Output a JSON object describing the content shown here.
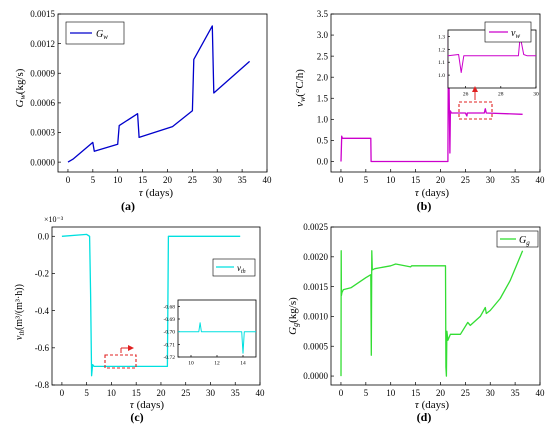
{
  "chart_data": [
    {
      "type": "line",
      "panel_label": "(a)",
      "xlabel": "τ (days)",
      "ylabel": "G_w (kg/s)",
      "ylabel_main": "G",
      "ylabel_sub": "w",
      "ylabel_unit": "(kg/s)",
      "xlim": [
        -2,
        40
      ],
      "ylim": [
        -0.0001,
        0.0015
      ],
      "xticks": [
        0,
        5,
        10,
        15,
        20,
        25,
        30,
        35,
        40
      ],
      "yticks": [
        0.0,
        0.0003,
        0.0006,
        0.0009,
        0.0012,
        0.0015
      ],
      "ytick_labels": [
        "0.0000",
        "0.0003",
        "0.0006",
        "0.0009",
        "0.0012",
        "0.0015"
      ],
      "color": "#0000cc",
      "legend": "G_w",
      "legend_main": "G",
      "legend_sub": "w",
      "legend_position": "top-left",
      "series": [
        {
          "x": [
            0,
            1,
            5,
            5.3,
            10,
            10.3,
            14,
            14.3,
            21,
            25,
            25.3,
            29,
            29.3,
            36.5
          ],
          "y": [
            0.0,
            3e-05,
            0.0002,
            0.00011,
            0.00018,
            0.00037,
            0.00049,
            0.00025,
            0.00036,
            0.00052,
            0.00104,
            0.00138,
            0.0007,
            0.00102
          ]
        }
      ]
    },
    {
      "type": "line",
      "panel_label": "(b)",
      "xlabel": "τ (days)",
      "ylabel": "v_w (°C/h)",
      "ylabel_main": "v",
      "ylabel_sub": "w",
      "ylabel_unit": "(°C/h)",
      "xlim": [
        -2,
        40
      ],
      "ylim": [
        -0.25,
        3.5
      ],
      "xticks": [
        0,
        5,
        10,
        15,
        20,
        25,
        30,
        35,
        40
      ],
      "yticks": [
        0.0,
        0.5,
        1.0,
        1.5,
        2.0,
        2.5,
        3.0,
        3.5
      ],
      "ytick_labels": [
        "0.0",
        "0.5",
        "1.0",
        "1.5",
        "2.0",
        "2.5",
        "3.0",
        "3.5"
      ],
      "color": "#cc00cc",
      "legend": "v_w",
      "legend_main": "v",
      "legend_sub": "w",
      "legend_position": "top-right",
      "series": [
        {
          "x": [
            0,
            0.15,
            0.3,
            6,
            6.05,
            21.5,
            21.6,
            21.9,
            22.0,
            22.2,
            25,
            25.3,
            25.4,
            25.6,
            28.8,
            29.0,
            29.2,
            36.5
          ],
          "y": [
            0.0,
            0.6,
            0.55,
            0.55,
            0.0,
            0.0,
            3.05,
            0.2,
            1.2,
            1.15,
            1.15,
            1.08,
            1.15,
            1.15,
            1.15,
            1.25,
            1.15,
            1.12
          ]
        }
      ],
      "inset": {
        "xlim": [
          25,
          30
        ],
        "ylim": [
          0.9,
          1.35
        ],
        "xticks": [
          26,
          28,
          30
        ],
        "yticks": [
          1.0,
          1.1,
          1.2,
          1.3
        ],
        "ytick_labels": [
          "1.0",
          "1.1",
          "1.2",
          "1.3"
        ],
        "x": [
          25,
          25.6,
          25.75,
          25.9,
          26.5,
          28.5,
          29.0,
          29.1,
          29.3,
          29.5,
          30
        ],
        "y": [
          1.15,
          1.16,
          1.02,
          1.15,
          1.15,
          1.15,
          1.15,
          1.3,
          1.16,
          1.15,
          1.15
        ]
      }
    },
    {
      "type": "line",
      "panel_label": "(c)",
      "xlabel": "τ (days)",
      "ylabel": "v_th (m³/(m³·h))",
      "ylabel_main": "v",
      "ylabel_sub": "th",
      "ylabel_unit": "(m³/(m³·h))",
      "scale_note": "×10⁻³",
      "xlim": [
        -2,
        40
      ],
      "ylim": [
        -0.8,
        0.05
      ],
      "xticks": [
        0,
        5,
        10,
        15,
        20,
        25,
        30,
        35,
        40
      ],
      "yticks": [
        0.0,
        -0.2,
        -0.4,
        -0.6,
        -0.8
      ],
      "ytick_labels": [
        "0.0",
        "-0.2",
        "-0.4",
        "-0.6",
        "-0.8"
      ],
      "color": "#00e0e0",
      "legend": "v_th",
      "legend_main": "v",
      "legend_sub": "th",
      "legend_position": "right",
      "series": [
        {
          "x": [
            0,
            5,
            5.6,
            5.8,
            6.0,
            6.2,
            6.5,
            7,
            21.3,
            21.5,
            36
          ],
          "y": [
            0.0,
            0.01,
            0.0,
            -0.31,
            -0.75,
            -0.69,
            -0.7,
            -0.7,
            -0.7,
            0.0,
            0.0
          ]
        }
      ],
      "inset": {
        "xlim": [
          9,
          15
        ],
        "ylim": [
          -0.72,
          -0.675
        ],
        "xticks": [
          10,
          12,
          14
        ],
        "yticks": [
          -0.68,
          -0.69,
          -0.7,
          -0.71,
          -0.72
        ],
        "ytick_labels": [
          "-0.68",
          "-0.69",
          "-0.70",
          "-0.71",
          "-0.72"
        ],
        "x": [
          9,
          10.6,
          10.7,
          10.8,
          11,
          13.8,
          13.9,
          14.0,
          14.1,
          15
        ],
        "y": [
          -0.7,
          -0.7,
          -0.693,
          -0.7,
          -0.7,
          -0.7,
          -0.7,
          -0.717,
          -0.7,
          -0.7
        ]
      }
    },
    {
      "type": "line",
      "panel_label": "(d)",
      "xlabel": "τ (days)",
      "ylabel": "G_g (kg/s)",
      "ylabel_main": "G",
      "ylabel_sub": "g",
      "ylabel_unit": "(kg/s)",
      "xlim": [
        -2,
        40
      ],
      "ylim": [
        -0.00015,
        0.0025
      ],
      "xticks": [
        0,
        5,
        10,
        15,
        20,
        25,
        30,
        35,
        40
      ],
      "yticks": [
        0.0,
        0.0005,
        0.001,
        0.0015,
        0.002,
        0.0025
      ],
      "ytick_labels": [
        "0.0000",
        "0.0005",
        "0.0010",
        "0.0015",
        "0.0020",
        "0.0025"
      ],
      "color": "#33dd33",
      "legend": "G_g",
      "legend_main": "G",
      "legend_sub": "g",
      "legend_position": "top-right",
      "series": [
        {
          "x": [
            0,
            0.05,
            0.1,
            0.2,
            0.5,
            2,
            5,
            6,
            6.1,
            6.2,
            6.3,
            6.8,
            10,
            11,
            14,
            14.2,
            21,
            21.1,
            21.2,
            21.3,
            21.5,
            22,
            24,
            25.5,
            26,
            28,
            29,
            29.2,
            30,
            32,
            34,
            36.5
          ],
          "y": [
            0.0,
            0.0021,
            0.00135,
            0.0014,
            0.00145,
            0.00148,
            0.00165,
            0.0017,
            0.00035,
            0.0021,
            0.00178,
            0.0018,
            0.00185,
            0.00188,
            0.00183,
            0.00185,
            0.00185,
            0.00015,
            0.0,
            0.00075,
            0.0006,
            0.0007,
            0.0007,
            0.0009,
            0.00085,
            0.001,
            0.00115,
            0.00105,
            0.0011,
            0.0013,
            0.0016,
            0.0021
          ]
        }
      ]
    }
  ]
}
